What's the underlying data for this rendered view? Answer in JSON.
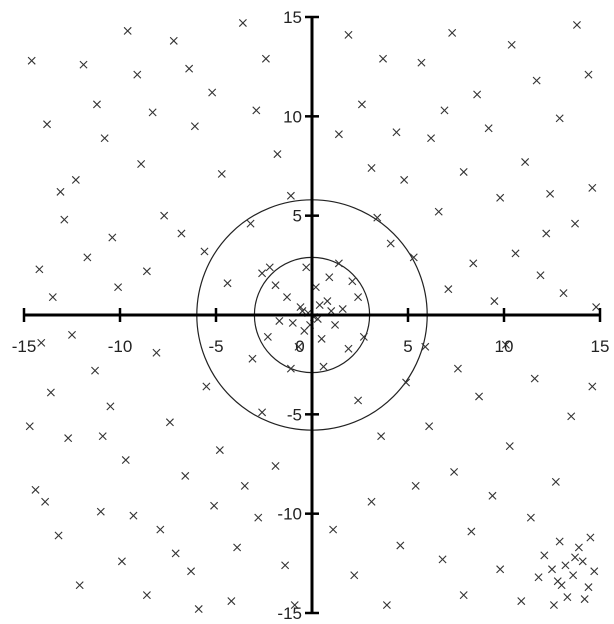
{
  "chart_data": {
    "type": "scatter",
    "title": "",
    "xlabel": "",
    "ylabel": "",
    "xlim": [
      -15,
      15
    ],
    "ylim": [
      -15,
      15
    ],
    "x_ticks": [
      -15,
      -10,
      -5,
      0,
      5,
      10,
      15
    ],
    "y_ticks": [
      -15,
      -10,
      -5,
      5,
      10,
      15
    ],
    "x_tick_labels": [
      "-15",
      "-10",
      "-5",
      "0",
      "5",
      "10",
      "15"
    ],
    "y_tick_labels": [
      "-15",
      "-10",
      "-5",
      "5",
      "10",
      "15"
    ],
    "grid": false,
    "legend": "none",
    "marker": "x",
    "marker_color": "#333333",
    "axis_color": "#000000",
    "circles": [
      {
        "cx": 0,
        "cy": 0,
        "r": 3
      },
      {
        "cx": 0,
        "cy": 0,
        "r": 6
      }
    ],
    "series": [
      {
        "values": [
          [
            -14.6,
            12.8
          ],
          [
            -13.8,
            9.6
          ],
          [
            -13.1,
            6.2
          ],
          [
            -12.9,
            4.8
          ],
          [
            -14.2,
            2.3
          ],
          [
            -13.5,
            0.9
          ],
          [
            -11.9,
            12.6
          ],
          [
            -11.2,
            10.6
          ],
          [
            -10.8,
            8.9
          ],
          [
            -9.6,
            14.3
          ],
          [
            -9.1,
            12.1
          ],
          [
            -8.3,
            10.2
          ],
          [
            -8.9,
            7.6
          ],
          [
            -7.7,
            5.0
          ],
          [
            -10.4,
            3.9
          ],
          [
            -11.7,
            2.9
          ],
          [
            -12.3,
            6.8
          ],
          [
            -10.1,
            1.4
          ],
          [
            -8.6,
            2.2
          ],
          [
            -7.2,
            13.8
          ],
          [
            -6.4,
            12.4
          ],
          [
            -6.1,
            9.5
          ],
          [
            -5.2,
            11.2
          ],
          [
            -4.7,
            7.1
          ],
          [
            -3.6,
            14.7
          ],
          [
            -2.4,
            12.9
          ],
          [
            -2.9,
            10.3
          ],
          [
            -1.8,
            8.1
          ],
          [
            -1.1,
            6.0
          ],
          [
            -6.8,
            4.1
          ],
          [
            -5.6,
            3.2
          ],
          [
            -4.4,
            1.6
          ],
          [
            -3.2,
            4.6
          ],
          [
            -2.2,
            2.4
          ],
          [
            -14.1,
            -1.4
          ],
          [
            -13.6,
            -3.9
          ],
          [
            -12.7,
            -6.2
          ],
          [
            -14.4,
            -8.8
          ],
          [
            -13.2,
            -11.1
          ],
          [
            -12.1,
            -13.6
          ],
          [
            -11.3,
            -2.8
          ],
          [
            -10.5,
            -4.6
          ],
          [
            -9.7,
            -7.3
          ],
          [
            -11.0,
            -9.9
          ],
          [
            -9.9,
            -12.4
          ],
          [
            -8.6,
            -14.1
          ],
          [
            -8.1,
            -1.9
          ],
          [
            -7.4,
            -5.4
          ],
          [
            -6.6,
            -8.1
          ],
          [
            -7.9,
            -10.8
          ],
          [
            -6.3,
            -12.9
          ],
          [
            -5.5,
            -3.6
          ],
          [
            -4.8,
            -6.8
          ],
          [
            -5.1,
            -9.6
          ],
          [
            -3.9,
            -11.7
          ],
          [
            -4.2,
            -14.4
          ],
          [
            -3.1,
            -2.2
          ],
          [
            -2.6,
            -4.9
          ],
          [
            -1.9,
            -7.6
          ],
          [
            -2.8,
            -10.2
          ],
          [
            -1.4,
            -12.6
          ],
          [
            -0.9,
            -14.6
          ],
          [
            -14.7,
            -5.6
          ],
          [
            -13.9,
            -9.4
          ],
          [
            -12.5,
            -1.0
          ],
          [
            -10.9,
            -6.1
          ],
          [
            -9.3,
            -10.1
          ],
          [
            -7.1,
            -12.0
          ],
          [
            -5.9,
            -14.8
          ],
          [
            -3.5,
            -8.6
          ],
          [
            -0.6,
            0.4
          ],
          [
            0.3,
            -0.2
          ],
          [
            0.8,
            0.7
          ],
          [
            -0.4,
            -0.8
          ],
          [
            1.2,
            -0.5
          ],
          [
            -1.3,
            0.9
          ],
          [
            0.2,
            1.4
          ],
          [
            -0.7,
            -1.6
          ],
          [
            1.6,
            0.3
          ],
          [
            -1.7,
            -0.3
          ],
          [
            0.5,
            -1.2
          ],
          [
            -0.2,
            0.1
          ],
          [
            0.9,
            1.9
          ],
          [
            -1.9,
            1.5
          ],
          [
            1.9,
            -1.7
          ],
          [
            -0.3,
            2.4
          ],
          [
            2.4,
            0.9
          ],
          [
            -2.3,
            -1.1
          ],
          [
            0.6,
            -2.6
          ],
          [
            1.4,
            2.6
          ],
          [
            -2.6,
            2.1
          ],
          [
            2.7,
            -1.1
          ],
          [
            -1.1,
            -2.7
          ],
          [
            2.1,
            1.7
          ],
          [
            -0.1,
            -0.5
          ],
          [
            0.4,
            0.5
          ],
          [
            -0.5,
            0.2
          ],
          [
            0.1,
            -0.1
          ],
          [
            1.0,
            0.2
          ],
          [
            -1.0,
            -0.4
          ],
          [
            3.4,
            4.9
          ],
          [
            4.8,
            6.8
          ],
          [
            6.2,
            8.9
          ],
          [
            5.7,
            12.7
          ],
          [
            7.3,
            14.2
          ],
          [
            8.6,
            11.1
          ],
          [
            9.2,
            9.4
          ],
          [
            10.4,
            13.6
          ],
          [
            11.7,
            11.8
          ],
          [
            12.9,
            9.9
          ],
          [
            13.8,
            14.6
          ],
          [
            14.4,
            12.1
          ],
          [
            2.6,
            10.6
          ],
          [
            3.7,
            12.9
          ],
          [
            1.9,
            14.1
          ],
          [
            4.4,
            9.2
          ],
          [
            6.6,
            5.2
          ],
          [
            7.9,
            7.2
          ],
          [
            9.8,
            5.9
          ],
          [
            11.1,
            7.7
          ],
          [
            12.4,
            6.1
          ],
          [
            13.7,
            4.6
          ],
          [
            14.6,
            6.4
          ],
          [
            10.6,
            3.1
          ],
          [
            11.9,
            2.0
          ],
          [
            13.1,
            1.1
          ],
          [
            8.4,
            2.6
          ],
          [
            7.1,
            1.3
          ],
          [
            5.3,
            2.9
          ],
          [
            9.5,
            0.7
          ],
          [
            14.8,
            0.4
          ],
          [
            12.2,
            4.1
          ],
          [
            3.1,
            7.4
          ],
          [
            1.4,
            9.1
          ],
          [
            6.9,
            10.3
          ],
          [
            4.1,
            3.6
          ],
          [
            2.4,
            -4.3
          ],
          [
            3.6,
            -6.1
          ],
          [
            4.9,
            -3.4
          ],
          [
            6.1,
            -5.6
          ],
          [
            7.4,
            -7.9
          ],
          [
            8.7,
            -4.1
          ],
          [
            9.4,
            -9.1
          ],
          [
            10.3,
            -6.6
          ],
          [
            11.6,
            -3.2
          ],
          [
            12.7,
            -8.4
          ],
          [
            13.5,
            -5.1
          ],
          [
            14.6,
            -3.6
          ],
          [
            3.1,
            -9.4
          ],
          [
            4.6,
            -11.6
          ],
          [
            5.4,
            -8.6
          ],
          [
            6.8,
            -12.3
          ],
          [
            7.9,
            -14.1
          ],
          [
            8.3,
            -10.9
          ],
          [
            9.8,
            -12.8
          ],
          [
            10.9,
            -14.4
          ],
          [
            11.4,
            -10.2
          ],
          [
            2.2,
            -13.1
          ],
          [
            1.1,
            -10.8
          ],
          [
            3.9,
            -14.6
          ],
          [
            5.9,
            -1.6
          ],
          [
            7.6,
            -2.7
          ],
          [
            10.1,
            -1.5
          ],
          [
            12.1,
            -12.1
          ],
          [
            12.8,
            -13.4
          ],
          [
            13.2,
            -12.6
          ],
          [
            13.6,
            -13.1
          ],
          [
            14.1,
            -12.4
          ],
          [
            14.4,
            -13.7
          ],
          [
            13.9,
            -11.7
          ],
          [
            12.5,
            -12.8
          ],
          [
            13.3,
            -14.2
          ],
          [
            14.7,
            -12.9
          ],
          [
            13.7,
            -12.2
          ],
          [
            12.9,
            -11.4
          ],
          [
            14.2,
            -14.3
          ],
          [
            13.0,
            -13.6
          ],
          [
            11.8,
            -13.2
          ],
          [
            14.5,
            -11.2
          ],
          [
            12.6,
            -14.6
          ]
        ]
      }
    ]
  }
}
